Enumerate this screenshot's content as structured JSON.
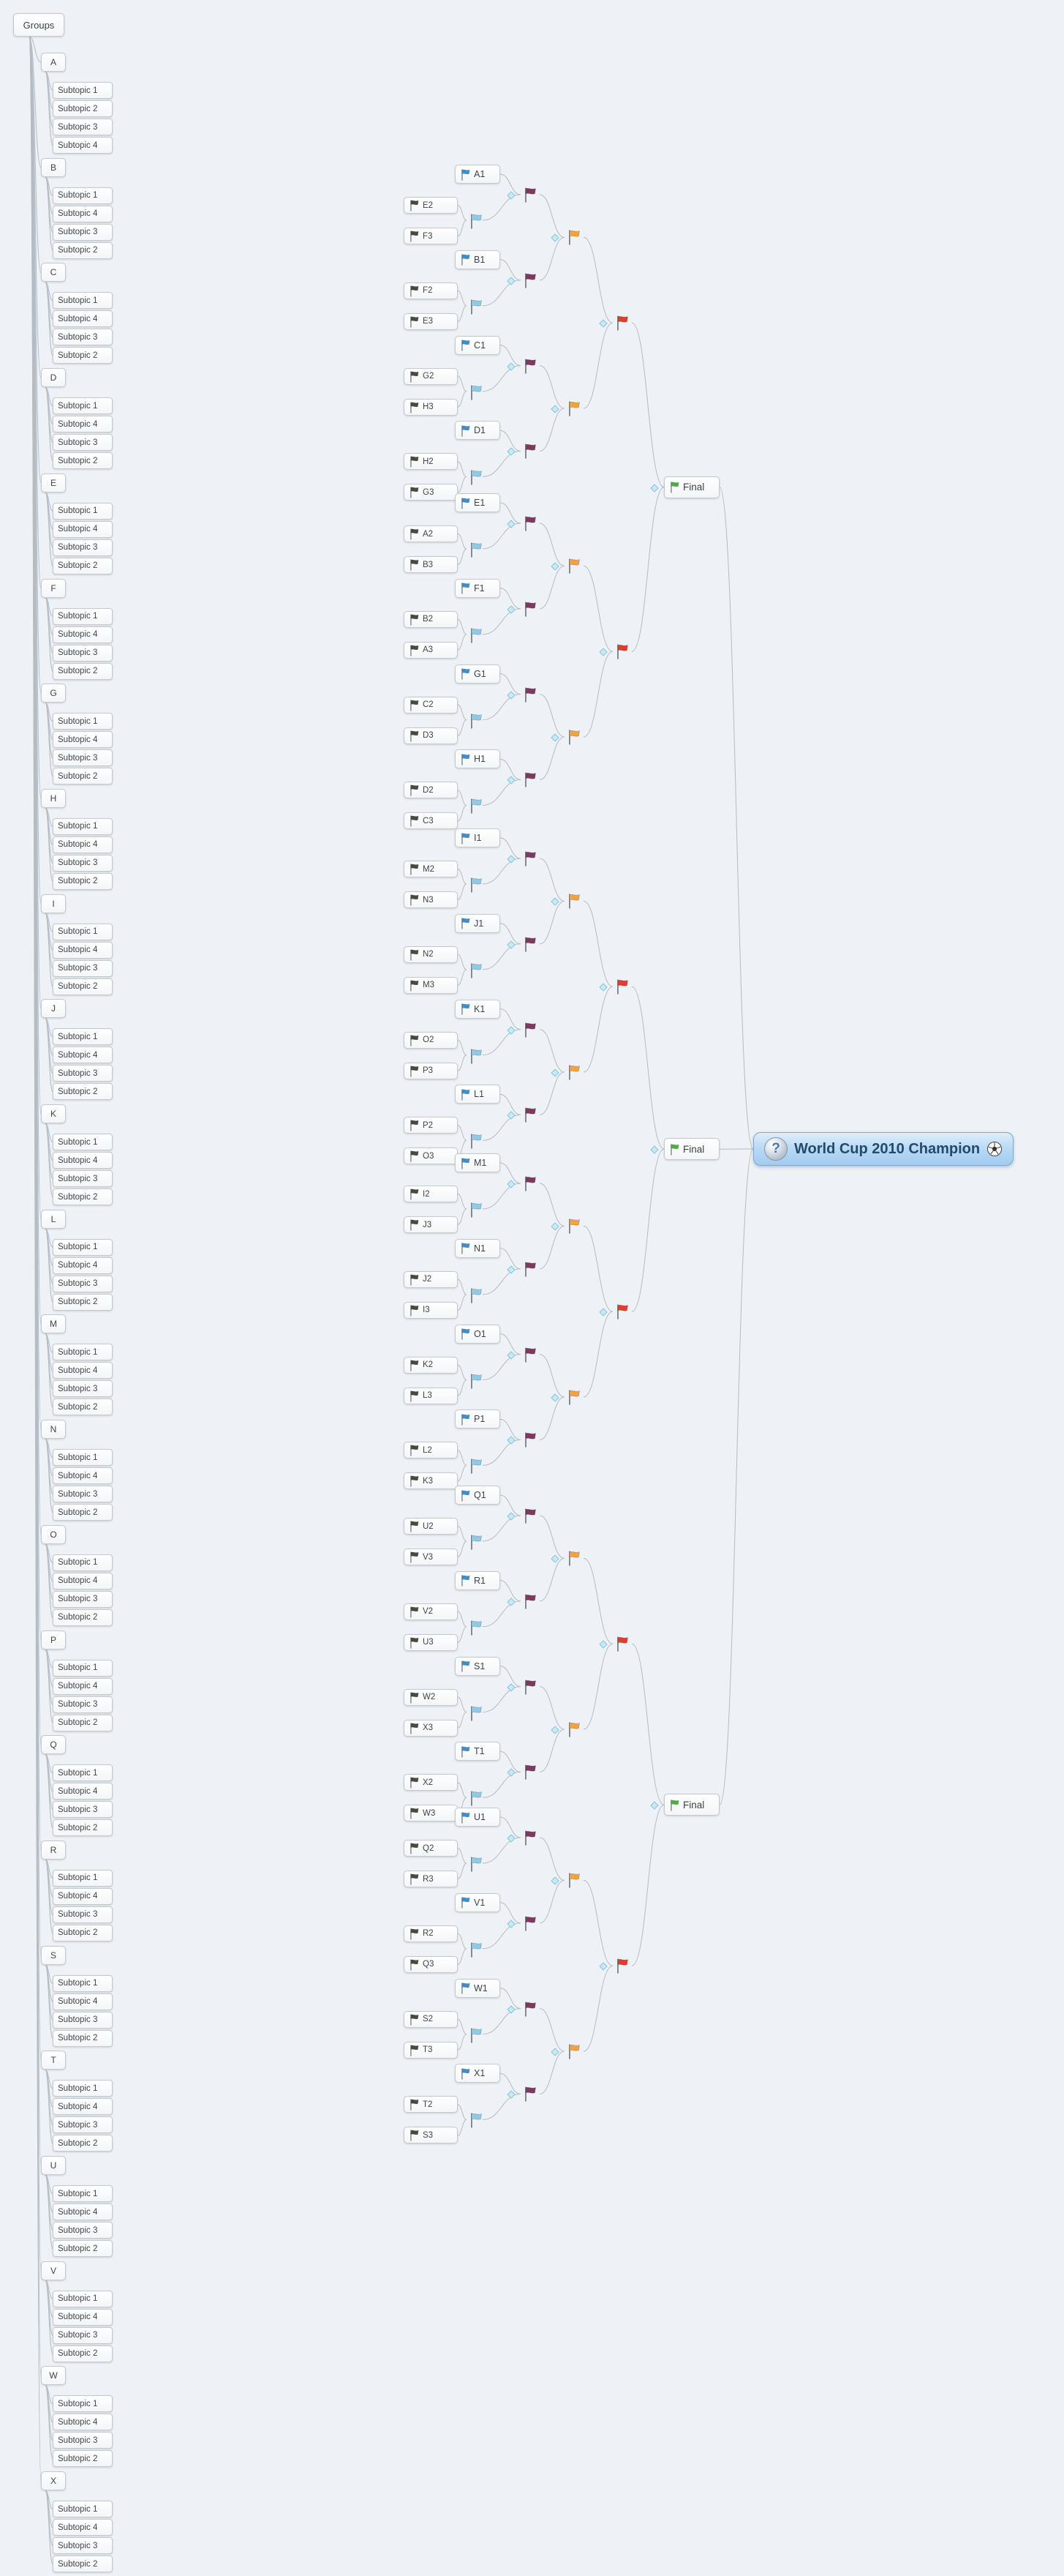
{
  "app": {
    "background": "#eef1f5"
  },
  "groups_panel": {
    "title": "Groups",
    "groups": [
      {
        "label": "A",
        "subtopics": [
          "Subtopic 1",
          "Subtopic 2",
          "Subtopic 3",
          "Subtopic 4"
        ]
      },
      {
        "label": "B",
        "subtopics": [
          "Subtopic 1",
          "Subtopic 4",
          "Subtopic 3",
          "Subtopic 2"
        ]
      },
      {
        "label": "C",
        "subtopics": [
          "Subtopic 1",
          "Subtopic 4",
          "Subtopic 3",
          "Subtopic 2"
        ]
      },
      {
        "label": "D",
        "subtopics": [
          "Subtopic 1",
          "Subtopic 4",
          "Subtopic 3",
          "Subtopic 2"
        ]
      },
      {
        "label": "E",
        "subtopics": [
          "Subtopic 1",
          "Subtopic 4",
          "Subtopic 3",
          "Subtopic 2"
        ]
      },
      {
        "label": "F",
        "subtopics": [
          "Subtopic 1",
          "Subtopic 4",
          "Subtopic 3",
          "Subtopic 2"
        ]
      },
      {
        "label": "G",
        "subtopics": [
          "Subtopic 1",
          "Subtopic 4",
          "Subtopic 3",
          "Subtopic 2"
        ]
      },
      {
        "label": "H",
        "subtopics": [
          "Subtopic 1",
          "Subtopic 4",
          "Subtopic 3",
          "Subtopic 2"
        ]
      },
      {
        "label": "I",
        "subtopics": [
          "Subtopic 1",
          "Subtopic 4",
          "Subtopic 3",
          "Subtopic 2"
        ]
      },
      {
        "label": "J",
        "subtopics": [
          "Subtopic 1",
          "Subtopic 4",
          "Subtopic 3",
          "Subtopic 2"
        ]
      },
      {
        "label": "K",
        "subtopics": [
          "Subtopic 1",
          "Subtopic 4",
          "Subtopic 3",
          "Subtopic 2"
        ]
      },
      {
        "label": "L",
        "subtopics": [
          "Subtopic 1",
          "Subtopic 4",
          "Subtopic 3",
          "Subtopic 2"
        ]
      },
      {
        "label": "M",
        "subtopics": [
          "Subtopic 1",
          "Subtopic 4",
          "Subtopic 3",
          "Subtopic 2"
        ]
      },
      {
        "label": "N",
        "subtopics": [
          "Subtopic 1",
          "Subtopic 4",
          "Subtopic 3",
          "Subtopic 2"
        ]
      },
      {
        "label": "O",
        "subtopics": [
          "Subtopic 1",
          "Subtopic 4",
          "Subtopic 3",
          "Subtopic 2"
        ]
      },
      {
        "label": "P",
        "subtopics": [
          "Subtopic 1",
          "Subtopic 4",
          "Subtopic 3",
          "Subtopic 2"
        ]
      },
      {
        "label": "Q",
        "subtopics": [
          "Subtopic 1",
          "Subtopic 4",
          "Subtopic 3",
          "Subtopic 2"
        ]
      },
      {
        "label": "R",
        "subtopics": [
          "Subtopic 1",
          "Subtopic 4",
          "Subtopic 3",
          "Subtopic 2"
        ]
      },
      {
        "label": "S",
        "subtopics": [
          "Subtopic 1",
          "Subtopic 4",
          "Subtopic 3",
          "Subtopic 2"
        ]
      },
      {
        "label": "T",
        "subtopics": [
          "Subtopic 1",
          "Subtopic 4",
          "Subtopic 3",
          "Subtopic 2"
        ]
      },
      {
        "label": "U",
        "subtopics": [
          "Subtopic 1",
          "Subtopic 4",
          "Subtopic 3",
          "Subtopic 2"
        ]
      },
      {
        "label": "V",
        "subtopics": [
          "Subtopic 1",
          "Subtopic 4",
          "Subtopic 3",
          "Subtopic 2"
        ]
      },
      {
        "label": "W",
        "subtopics": [
          "Subtopic 1",
          "Subtopic 4",
          "Subtopic 3",
          "Subtopic 2"
        ]
      },
      {
        "label": "X",
        "subtopics": [
          "Subtopic 1",
          "Subtopic 4",
          "Subtopic 3",
          "Subtopic 2"
        ]
      }
    ]
  },
  "bracket": {
    "root": {
      "label": "World Cup 2010 Champion",
      "left_icon": "question-ball",
      "right_icon": "soccer-ball"
    },
    "final_label": "Final",
    "flag_colors": {
      "winner": "#3f8ecb",
      "team": "#464b3e",
      "slot": "#8fcae6",
      "round1": "#7d3a5e",
      "round2": "#f2a43c",
      "round3": "#e23c2d",
      "final": "#48b13b"
    },
    "finals": [
      {
        "quads": [
          [
            {
              "winner": "A1",
              "teams": [
                "E2",
                "F3"
              ]
            },
            {
              "winner": "B1",
              "teams": [
                "F2",
                "E3"
              ]
            },
            {
              "winner": "C1",
              "teams": [
                "G2",
                "H3"
              ]
            },
            {
              "winner": "D1",
              "teams": [
                "H2",
                "G3"
              ]
            }
          ],
          [
            {
              "winner": "E1",
              "teams": [
                "A2",
                "B3"
              ]
            },
            {
              "winner": "F1",
              "teams": [
                "B2",
                "A3"
              ]
            },
            {
              "winner": "G1",
              "teams": [
                "C2",
                "D3"
              ]
            },
            {
              "winner": "H1",
              "teams": [
                "D2",
                "C3"
              ]
            }
          ]
        ]
      },
      {
        "quads": [
          [
            {
              "winner": "I1",
              "teams": [
                "M2",
                "N3"
              ]
            },
            {
              "winner": "J1",
              "teams": [
                "N2",
                "M3"
              ]
            },
            {
              "winner": "K1",
              "teams": [
                "O2",
                "P3"
              ]
            },
            {
              "winner": "L1",
              "teams": [
                "P2",
                "O3"
              ]
            }
          ],
          [
            {
              "winner": "M1",
              "teams": [
                "I2",
                "J3"
              ]
            },
            {
              "winner": "N1",
              "teams": [
                "J2",
                "I3"
              ]
            },
            {
              "winner": "O1",
              "teams": [
                "K2",
                "L3"
              ]
            },
            {
              "winner": "P1",
              "teams": [
                "L2",
                "K3"
              ]
            }
          ]
        ]
      },
      {
        "quads": [
          [
            {
              "winner": "Q1",
              "teams": [
                "U2",
                "V3"
              ]
            },
            {
              "winner": "R1",
              "teams": [
                "V2",
                "U3"
              ]
            },
            {
              "winner": "S1",
              "teams": [
                "W2",
                "X3"
              ]
            },
            {
              "winner": "T1",
              "teams": [
                "X2",
                "W3"
              ]
            }
          ],
          [
            {
              "winner": "U1",
              "teams": [
                "Q2",
                "R3"
              ]
            },
            {
              "winner": "V1",
              "teams": [
                "R2",
                "Q3"
              ]
            },
            {
              "winner": "W1",
              "teams": [
                "S2",
                "T3"
              ]
            },
            {
              "winner": "X1",
              "teams": [
                "T2",
                "S3"
              ]
            }
          ]
        ]
      }
    ]
  }
}
